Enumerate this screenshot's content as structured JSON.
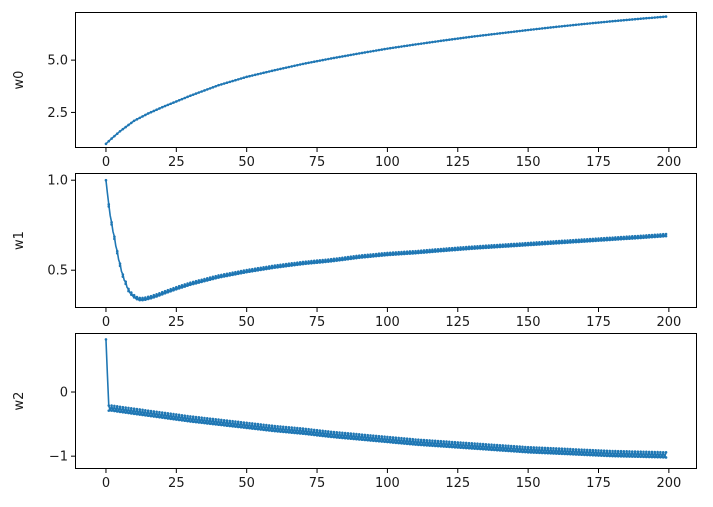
{
  "chart_data": [
    {
      "type": "line",
      "title": "",
      "xlabel": "",
      "ylabel": "w0",
      "xlim": [
        -11,
        210
      ],
      "ylim": [
        0.8,
        7.3
      ],
      "xticks": [
        0,
        25,
        50,
        75,
        100,
        125,
        150,
        175,
        200
      ],
      "yticks": [
        2.5,
        5.0
      ],
      "ytick_labels": [
        "2.5",
        "5.0"
      ],
      "series": [
        {
          "color": "#1f77b4",
          "x": [
            0,
            2,
            5,
            10,
            15,
            20,
            30,
            40,
            50,
            60,
            70,
            80,
            90,
            100,
            110,
            120,
            130,
            140,
            150,
            160,
            170,
            180,
            190,
            199
          ],
          "y": [
            1.0,
            1.25,
            1.6,
            2.1,
            2.45,
            2.75,
            3.3,
            3.8,
            4.2,
            4.52,
            4.82,
            5.08,
            5.32,
            5.55,
            5.75,
            5.94,
            6.12,
            6.28,
            6.44,
            6.59,
            6.73,
            6.86,
            6.98,
            7.08
          ]
        }
      ]
    },
    {
      "type": "line",
      "title": "",
      "xlabel": "",
      "ylabel": "w1",
      "xlim": [
        -11,
        210
      ],
      "ylim": [
        0.29,
        1.04
      ],
      "xticks": [
        0,
        25,
        50,
        75,
        100,
        125,
        150,
        175,
        200
      ],
      "yticks": [
        0.5,
        1.0
      ],
      "ytick_labels": [
        "0.5",
        "1.0"
      ],
      "series": [
        {
          "color": "#1f77b4",
          "x": [
            0,
            1,
            2,
            3,
            4,
            5,
            6,
            7,
            8,
            9,
            10,
            11,
            12,
            13,
            14,
            16,
            18,
            20,
            25,
            30,
            40,
            50,
            60,
            70,
            80,
            90,
            100,
            110,
            120,
            130,
            140,
            150,
            160,
            170,
            180,
            190,
            199
          ],
          "y": [
            1.0,
            0.86,
            0.76,
            0.68,
            0.6,
            0.53,
            0.47,
            0.43,
            0.39,
            0.37,
            0.355,
            0.345,
            0.34,
            0.34,
            0.342,
            0.35,
            0.36,
            0.372,
            0.4,
            0.425,
            0.465,
            0.495,
            0.52,
            0.54,
            0.555,
            0.575,
            0.59,
            0.6,
            0.613,
            0.625,
            0.635,
            0.645,
            0.655,
            0.665,
            0.675,
            0.685,
            0.695
          ],
          "band": 0.012
        }
      ]
    },
    {
      "type": "line",
      "title": "",
      "xlabel": "",
      "ylabel": "w2",
      "xlim": [
        -11,
        210
      ],
      "ylim": [
        -1.2,
        0.92
      ],
      "xticks": [
        0,
        25,
        50,
        75,
        100,
        125,
        150,
        175,
        200
      ],
      "xtick_labels": [
        "0",
        "25",
        "50",
        "75",
        "100",
        "125",
        "150",
        "175",
        "200"
      ],
      "yticks": [
        -1,
        0
      ],
      "ytick_labels": [
        "−1",
        "0"
      ],
      "series": [
        {
          "color": "#1f77b4",
          "x": [
            0,
            1,
            2,
            5,
            10,
            15,
            20,
            30,
            40,
            50,
            60,
            70,
            80,
            90,
            100,
            110,
            120,
            130,
            140,
            150,
            160,
            170,
            180,
            190,
            199
          ],
          "y": [
            0.82,
            -0.25,
            -0.25,
            -0.27,
            -0.3,
            -0.33,
            -0.36,
            -0.42,
            -0.47,
            -0.52,
            -0.57,
            -0.61,
            -0.66,
            -0.7,
            -0.74,
            -0.78,
            -0.81,
            -0.84,
            -0.87,
            -0.9,
            -0.92,
            -0.94,
            -0.96,
            -0.97,
            -0.98
          ],
          "band": 0.08
        }
      ]
    }
  ]
}
